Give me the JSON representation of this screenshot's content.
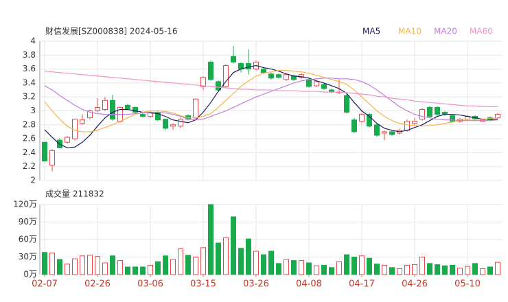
{
  "chart_data": {
    "type": "candlestick",
    "title": "财信发展[SZ000838] 2024-05-16",
    "categories": [
      "02-07",
      null,
      null,
      null,
      null,
      null,
      null,
      "02-26",
      null,
      null,
      null,
      null,
      null,
      null,
      "03-06",
      null,
      null,
      null,
      null,
      null,
      null,
      "03-15",
      null,
      null,
      null,
      null,
      null,
      null,
      "03-26",
      null,
      null,
      null,
      null,
      null,
      null,
      "04-08",
      null,
      null,
      null,
      null,
      null,
      null,
      "04-17",
      null,
      null,
      null,
      null,
      null,
      null,
      "04-26",
      null,
      null,
      null,
      null,
      null,
      null,
      "05-10",
      null,
      null,
      null,
      null
    ],
    "open": [
      2.55,
      2.22,
      2.58,
      2.55,
      2.6,
      2.82,
      2.9,
      3.0,
      3.02,
      3.15,
      2.85,
      3.08,
      3.05,
      2.95,
      2.92,
      2.98,
      2.88,
      2.78,
      2.78,
      2.93,
      2.9,
      3.35,
      3.7,
      3.42,
      3.35,
      3.78,
      3.68,
      3.68,
      3.6,
      3.6,
      3.53,
      3.52,
      3.45,
      3.5,
      3.48,
      3.45,
      3.36,
      3.38,
      3.3,
      3.26,
      3.22,
      2.87,
      2.85,
      2.95,
      2.8,
      2.68,
      2.7,
      2.68,
      2.72,
      2.82,
      2.88,
      3.05,
      3.05,
      2.98,
      2.93,
      2.85,
      2.88,
      2.92,
      2.85,
      2.9,
      2.9
    ],
    "close": [
      2.28,
      2.43,
      2.47,
      2.62,
      2.88,
      2.87,
      3.0,
      3.05,
      3.15,
      2.88,
      3.05,
      3.03,
      2.98,
      2.92,
      2.98,
      2.87,
      2.75,
      2.8,
      2.88,
      2.88,
      3.17,
      3.48,
      3.45,
      3.3,
      3.65,
      3.7,
      3.6,
      3.6,
      3.7,
      3.55,
      3.47,
      3.48,
      3.52,
      3.45,
      3.52,
      3.35,
      3.42,
      3.32,
      3.27,
      3.27,
      2.98,
      2.7,
      2.95,
      2.78,
      2.65,
      2.7,
      2.66,
      2.72,
      2.85,
      2.85,
      3.02,
      2.92,
      2.95,
      2.95,
      2.85,
      2.88,
      2.92,
      2.88,
      2.87,
      2.87,
      2.95
    ],
    "high": [
      2.55,
      2.45,
      2.6,
      2.64,
      2.89,
      2.95,
      3.02,
      3.18,
      3.2,
      3.23,
      3.06,
      3.1,
      3.06,
      2.97,
      3.0,
      2.99,
      2.89,
      2.82,
      2.9,
      2.95,
      3.18,
      3.5,
      3.72,
      3.44,
      3.67,
      3.93,
      3.7,
      3.88,
      3.72,
      3.62,
      3.55,
      3.54,
      3.54,
      3.52,
      3.54,
      3.47,
      3.44,
      3.4,
      3.32,
      3.45,
      3.24,
      2.9,
      2.97,
      2.97,
      2.82,
      2.72,
      2.72,
      2.74,
      2.88,
      2.9,
      3.04,
      3.07,
      3.07,
      3.0,
      2.95,
      2.9,
      2.94,
      2.94,
      2.89,
      2.92,
      2.97
    ],
    "low": [
      2.27,
      2.13,
      2.46,
      2.53,
      2.58,
      2.8,
      2.88,
      2.98,
      3.0,
      2.86,
      2.83,
      3.01,
      2.96,
      2.9,
      2.9,
      2.85,
      2.72,
      2.73,
      2.75,
      2.86,
      2.88,
      3.3,
      3.43,
      3.28,
      3.33,
      3.68,
      3.55,
      3.52,
      3.58,
      3.53,
      3.45,
      3.46,
      3.43,
      3.43,
      3.46,
      3.33,
      3.34,
      3.3,
      3.25,
      3.24,
      2.96,
      2.68,
      2.83,
      2.76,
      2.63,
      2.58,
      2.64,
      2.66,
      2.7,
      2.8,
      2.86,
      2.9,
      2.93,
      2.93,
      2.83,
      2.83,
      2.86,
      2.86,
      2.84,
      2.85,
      2.88
    ],
    "up_color": "#e8474a",
    "down_color": "#1aaa4e",
    "ylim": [
      2,
      4
    ],
    "yticks": [
      2,
      2.2,
      2.4,
      2.6,
      2.8,
      3,
      3.2,
      3.4,
      3.6,
      3.8,
      4
    ],
    "grid": true,
    "series": [
      {
        "name": "MA5",
        "color": "#1c1c5c",
        "values": [
          2.73,
          2.62,
          2.52,
          2.47,
          2.48,
          2.55,
          2.65,
          2.78,
          2.9,
          2.98,
          3.02,
          3.02,
          3.0,
          2.98,
          2.97,
          2.96,
          2.92,
          2.87,
          2.85,
          2.83,
          2.87,
          2.98,
          3.12,
          3.28,
          3.42,
          3.55,
          3.6,
          3.63,
          3.65,
          3.62,
          3.6,
          3.57,
          3.53,
          3.5,
          3.49,
          3.47,
          3.43,
          3.4,
          3.36,
          3.32,
          3.25,
          3.12,
          3.0,
          2.92,
          2.82,
          2.75,
          2.72,
          2.7,
          2.72,
          2.76,
          2.8,
          2.86,
          2.92,
          2.95,
          2.95,
          2.94,
          2.92,
          2.9,
          2.88,
          2.88,
          2.88
        ]
      },
      {
        "name": "MA10",
        "color": "#f5b64a",
        "values": [
          3.13,
          3.0,
          2.88,
          2.78,
          2.72,
          2.7,
          2.7,
          2.72,
          2.76,
          2.8,
          2.85,
          2.9,
          2.95,
          2.98,
          3.0,
          3.0,
          2.99,
          2.97,
          2.93,
          2.9,
          2.9,
          2.92,
          2.96,
          3.05,
          3.15,
          3.25,
          3.35,
          3.43,
          3.5,
          3.54,
          3.56,
          3.58,
          3.58,
          3.57,
          3.56,
          3.54,
          3.51,
          3.48,
          3.45,
          3.42,
          3.38,
          3.3,
          3.2,
          3.1,
          3.0,
          2.92,
          2.86,
          2.82,
          2.8,
          2.79,
          2.78,
          2.79,
          2.8,
          2.82,
          2.84,
          2.86,
          2.88,
          2.88,
          2.88,
          2.89,
          2.9
        ]
      },
      {
        "name": "MA20",
        "color": "#c07ddf",
        "values": [
          3.36,
          3.3,
          3.22,
          3.15,
          3.08,
          3.02,
          2.98,
          2.96,
          2.95,
          2.95,
          2.95,
          2.95,
          2.96,
          2.97,
          2.98,
          2.98,
          2.97,
          2.95,
          2.92,
          2.88,
          2.87,
          2.88,
          2.92,
          2.96,
          3.0,
          3.05,
          3.1,
          3.15,
          3.2,
          3.24,
          3.28,
          3.32,
          3.36,
          3.4,
          3.43,
          3.45,
          3.46,
          3.47,
          3.47,
          3.46,
          3.46,
          3.45,
          3.42,
          3.37,
          3.3,
          3.22,
          3.14,
          3.06,
          3.0,
          2.95,
          2.92,
          2.9,
          2.88,
          2.87,
          2.87,
          2.86,
          2.86,
          2.86,
          2.86,
          2.86,
          2.87
        ]
      },
      {
        "name": "MA60",
        "color": "#f292c8",
        "values": [
          3.57,
          3.56,
          3.55,
          3.54,
          3.53,
          3.52,
          3.51,
          3.5,
          3.49,
          3.48,
          3.47,
          3.46,
          3.45,
          3.44,
          3.43,
          3.42,
          3.41,
          3.4,
          3.39,
          3.38,
          3.37,
          3.36,
          3.35,
          3.34,
          3.33,
          3.32,
          3.31,
          3.31,
          3.3,
          3.3,
          3.3,
          3.29,
          3.29,
          3.29,
          3.28,
          3.28,
          3.28,
          3.27,
          3.27,
          3.27,
          3.26,
          3.25,
          3.24,
          3.23,
          3.21,
          3.2,
          3.18,
          3.17,
          3.16,
          3.14,
          3.13,
          3.12,
          3.11,
          3.1,
          3.09,
          3.08,
          3.07,
          3.07,
          3.06,
          3.06,
          3.06
        ]
      }
    ],
    "volume": {
      "title": "成交量 211832",
      "values": [
        38,
        37,
        26,
        18,
        27,
        32,
        33,
        31,
        20,
        32,
        24,
        13,
        13,
        13,
        16,
        22,
        32,
        26,
        44,
        33,
        30,
        46,
        120,
        54,
        63,
        99,
        45,
        61,
        40,
        34,
        40,
        19,
        26,
        24,
        24,
        20,
        15,
        16,
        12,
        22,
        34,
        30,
        32,
        28,
        18,
        16,
        12,
        10,
        16,
        17,
        30,
        19,
        17,
        15,
        16,
        11,
        14,
        19,
        10,
        13,
        21
      ],
      "ylim": [
        0,
        120
      ],
      "yticks": [
        {
          "value": 0,
          "label": "0万"
        },
        {
          "value": 30,
          "label": "30万"
        },
        {
          "value": 60,
          "label": "60万"
        },
        {
          "value": 90,
          "label": "90万"
        },
        {
          "value": 120,
          "label": "120万"
        }
      ]
    }
  }
}
